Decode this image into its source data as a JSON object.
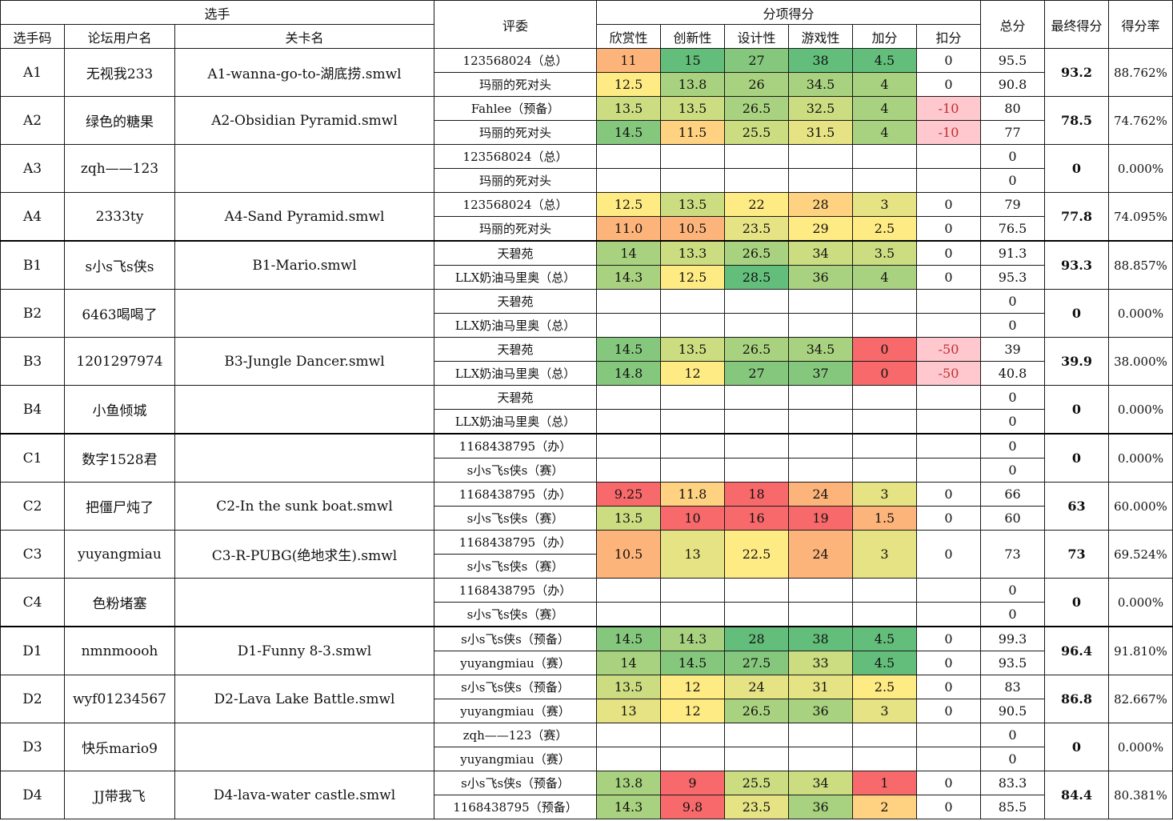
{
  "headers": {
    "group_player": "选手",
    "judge": "评委",
    "group_scores": "分项得分",
    "code": "选手码",
    "username": "论坛用户名",
    "level": "关卡名",
    "cats": [
      "欣赏性",
      "创新性",
      "设计性",
      "游戏性",
      "加分",
      "扣分"
    ],
    "total": "总分",
    "final": "最终得分",
    "rate": "得分率"
  },
  "entries": [
    {
      "code": "A1",
      "user": "无视我233",
      "level": "A1-wanna-go-to-湖底捞.smwl",
      "final": "93.2",
      "rate": "88.762%",
      "judges": [
        {
          "name": "123568024（总）",
          "scores": [
            "11",
            "15",
            "27",
            "38",
            "4.5",
            "0"
          ],
          "total": "95.5"
        },
        {
          "name": "玛丽的死对头",
          "scores": [
            "12.5",
            "13.8",
            "26",
            "34.5",
            "4",
            "0"
          ],
          "total": "90.8"
        }
      ]
    },
    {
      "code": "A2",
      "user": "绿色的糖果",
      "level": "A2-Obsidian Pyramid.smwl",
      "final": "78.5",
      "rate": "74.762%",
      "judges": [
        {
          "name": "Fahlee（预备）",
          "scores": [
            "13.5",
            "13.5",
            "26.5",
            "32.5",
            "4",
            "-10"
          ],
          "total": "80"
        },
        {
          "name": "玛丽的死对头",
          "scores": [
            "14.5",
            "11.5",
            "25.5",
            "31.5",
            "4",
            "-10"
          ],
          "total": "77"
        }
      ]
    },
    {
      "code": "A3",
      "user": "zqh——123",
      "level": "",
      "final": "0",
      "rate": "0.000%",
      "judges": [
        {
          "name": "123568024（总）",
          "scores": [
            "",
            "",
            "",
            "",
            "",
            ""
          ],
          "total": "0"
        },
        {
          "name": "玛丽的死对头",
          "scores": [
            "",
            "",
            "",
            "",
            "",
            ""
          ],
          "total": "0"
        }
      ]
    },
    {
      "code": "A4",
      "user": "2333ty",
      "level": "A4-Sand Pyramid.smwl",
      "final": "77.8",
      "rate": "74.095%",
      "judges": [
        {
          "name": "123568024（总）",
          "scores": [
            "12.5",
            "13.5",
            "22",
            "28",
            "3",
            "0"
          ],
          "total": "79"
        },
        {
          "name": "玛丽的死对头",
          "scores": [
            "11.0",
            "10.5",
            "23.5",
            "29",
            "2.5",
            "0"
          ],
          "total": "76.5"
        }
      ]
    },
    {
      "code": "B1",
      "user": "s小s飞s侠s",
      "level": "B1-Mario.smwl",
      "final": "93.3",
      "rate": "88.857%",
      "judges": [
        {
          "name": "天碧苑",
          "scores": [
            "14",
            "13.3",
            "26.5",
            "34",
            "3.5",
            "0"
          ],
          "total": "91.3"
        },
        {
          "name": "LLX奶油马里奥（总）",
          "scores": [
            "14.3",
            "12.5",
            "28.5",
            "36",
            "4",
            "0"
          ],
          "total": "95.3"
        }
      ]
    },
    {
      "code": "B2",
      "user": "6463喝喝了",
      "level": "",
      "final": "0",
      "rate": "0.000%",
      "judges": [
        {
          "name": "天碧苑",
          "scores": [
            "",
            "",
            "",
            "",
            "",
            ""
          ],
          "total": "0"
        },
        {
          "name": "LLX奶油马里奥（总）",
          "scores": [
            "",
            "",
            "",
            "",
            "",
            ""
          ],
          "total": "0"
        }
      ]
    },
    {
      "code": "B3",
      "user": "1201297974",
      "level": "B3-Jungle Dancer.smwl",
      "final": "39.9",
      "rate": "38.000%",
      "judges": [
        {
          "name": "天碧苑",
          "scores": [
            "14.5",
            "13.5",
            "26.5",
            "34.5",
            "0",
            "-50"
          ],
          "total": "39"
        },
        {
          "name": "LLX奶油马里奥（总）",
          "scores": [
            "14.8",
            "12",
            "27",
            "37",
            "0",
            "-50"
          ],
          "total": "40.8"
        }
      ]
    },
    {
      "code": "B4",
      "user": "小鱼倾城",
      "level": "",
      "final": "0",
      "rate": "0.000%",
      "judges": [
        {
          "name": "天碧苑",
          "scores": [
            "",
            "",
            "",
            "",
            "",
            ""
          ],
          "total": "0"
        },
        {
          "name": "LLX奶油马里奥（总）",
          "scores": [
            "",
            "",
            "",
            "",
            "",
            ""
          ],
          "total": "0"
        }
      ]
    },
    {
      "code": "C1",
      "user": "数字1528君",
      "level": "",
      "final": "0",
      "rate": "0.000%",
      "judges": [
        {
          "name": "1168438795（办）",
          "scores": [
            "",
            "",
            "",
            "",
            "",
            ""
          ],
          "total": "0"
        },
        {
          "name": "s小s飞s侠s（赛）",
          "scores": [
            "",
            "",
            "",
            "",
            "",
            ""
          ],
          "total": "0"
        }
      ]
    },
    {
      "code": "C2",
      "user": "把僵尸炖了",
      "level": "C2-In the sunk boat.smwl",
      "final": "63",
      "rate": "60.000%",
      "judges": [
        {
          "name": "1168438795（办）",
          "scores": [
            "9.25",
            "11.8",
            "18",
            "24",
            "3",
            "0"
          ],
          "total": "66"
        },
        {
          "name": "s小s飞s侠s（赛）",
          "scores": [
            "13.5",
            "10",
            "16",
            "19",
            "1.5",
            "0"
          ],
          "total": "60"
        }
      ]
    },
    {
      "code": "C3",
      "user": "yuyangmiau",
      "level": "C3-R-PUBG(绝地求生).smwl",
      "final": "73",
      "rate": "69.524%",
      "merged": true,
      "judges": [
        {
          "name": "1168438795（办）",
          "scores": [
            "10.5",
            "13",
            "22.5",
            "24",
            "3",
            "0"
          ],
          "total": "73"
        },
        {
          "name": "s小s飞s侠s（赛）",
          "scores": null,
          "total": null
        }
      ]
    },
    {
      "code": "C4",
      "user": "色粉堵塞",
      "level": "",
      "final": "0",
      "rate": "0.000%",
      "judges": [
        {
          "name": "1168438795（办）",
          "scores": [
            "",
            "",
            "",
            "",
            "",
            ""
          ],
          "total": "0"
        },
        {
          "name": "s小s飞s侠s（赛）",
          "scores": [
            "",
            "",
            "",
            "",
            "",
            ""
          ],
          "total": "0"
        }
      ]
    },
    {
      "code": "D1",
      "user": "nmnmoooh",
      "level": "D1-Funny 8-3.smwl",
      "final": "96.4",
      "rate": "91.810%",
      "judges": [
        {
          "name": "s小s飞s侠s（预备）",
          "scores": [
            "14.5",
            "14.3",
            "28",
            "38",
            "4.5",
            "0"
          ],
          "total": "99.3"
        },
        {
          "name": "yuyangmiau（赛）",
          "scores": [
            "14",
            "14.5",
            "27.5",
            "33",
            "4.5",
            "0"
          ],
          "total": "93.5"
        }
      ]
    },
    {
      "code": "D2",
      "user": "wyf01234567",
      "level": "D2-Lava Lake Battle.smwl",
      "final": "86.8",
      "rate": "82.667%",
      "judges": [
        {
          "name": "s小s飞s侠s（预备）",
          "scores": [
            "13.5",
            "12",
            "24",
            "31",
            "2.5",
            "0"
          ],
          "total": "83"
        },
        {
          "name": "yuyangmiau（赛）",
          "scores": [
            "13",
            "12",
            "26.5",
            "36",
            "3",
            "0"
          ],
          "total": "90.5"
        }
      ]
    },
    {
      "code": "D3",
      "user": "快乐mario9",
      "level": "",
      "final": "0",
      "rate": "0.000%",
      "judges": [
        {
          "name": "zqh——123（赛）",
          "scores": [
            "",
            "",
            "",
            "",
            "",
            ""
          ],
          "total": "0"
        },
        {
          "name": "yuyangmiau（赛）",
          "scores": [
            "",
            "",
            "",
            "",
            "",
            ""
          ],
          "total": "0"
        }
      ]
    },
    {
      "code": "D4",
      "user": "JJ带我飞",
      "level": "D4-lava-water castle.smwl",
      "final": "84.4",
      "rate": "80.381%",
      "judges": [
        {
          "name": "s小s飞s侠s（预备）",
          "scores": [
            "13.8",
            "9",
            "25.5",
            "34",
            "1",
            "0"
          ],
          "total": "83.3"
        },
        {
          "name": "1168438795（预备）",
          "scores": [
            "14.3",
            "9.8",
            "23.5",
            "36",
            "2",
            "0"
          ],
          "total": "85.5"
        }
      ]
    }
  ],
  "colors": {
    "dark_green": "#63be7b",
    "mid_green": "#85c87d",
    "light_green": "#a8d27f",
    "yellow_green": "#cbdc81",
    "pale_yellow": "#e5e383",
    "yellow": "#ffeb84",
    "light_orange": "#fed280",
    "orange": "#fdb47a",
    "red": "#f8696b",
    "deduction_pink": "#ffc7ce",
    "deduction_text": "#c0302f"
  }
}
